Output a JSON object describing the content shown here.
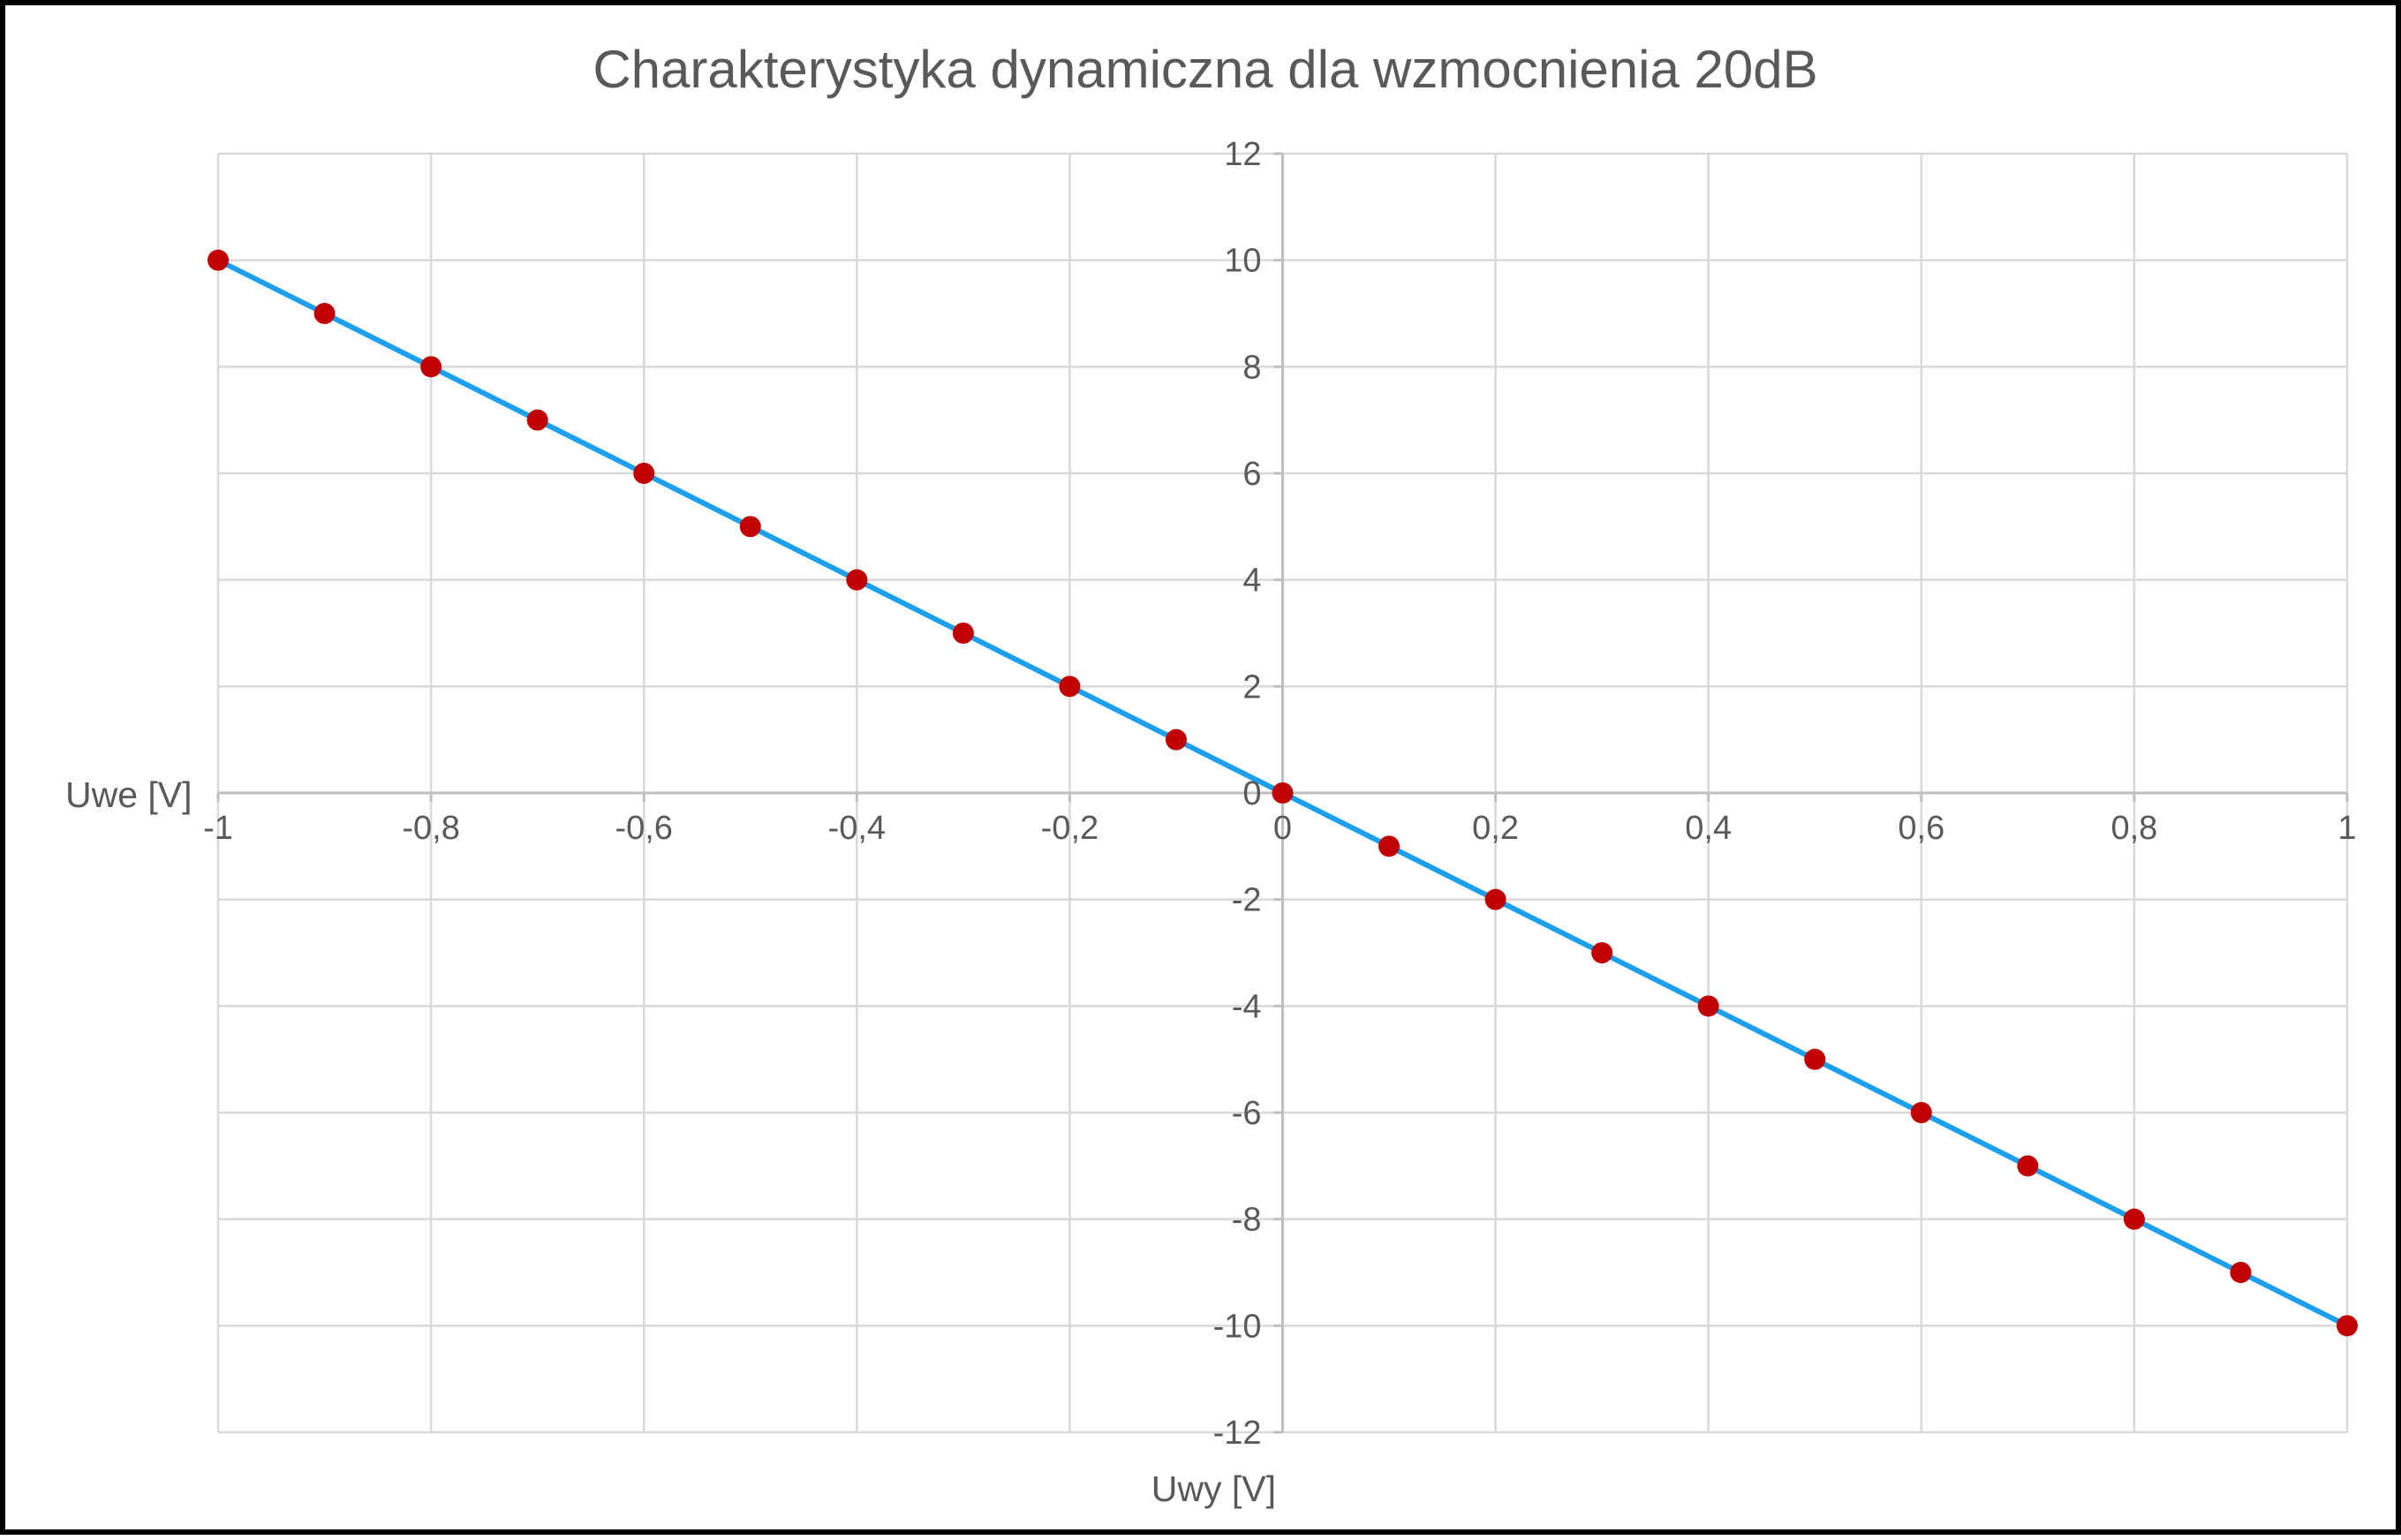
{
  "chart_data": {
    "type": "scatter",
    "title": "Charakterystyka dynamiczna dla wzmocnienia 20dB",
    "xlabel": "Uwy [V]",
    "ylabel": "Uwe [V]",
    "xlim": [
      -1,
      1
    ],
    "ylim": [
      -12,
      12
    ],
    "x_ticks": [
      -1,
      -0.8,
      -0.6,
      -0.4,
      -0.2,
      0,
      0.2,
      0.4,
      0.6,
      0.8,
      1
    ],
    "x_tick_labels": [
      "-1",
      "-0,8",
      "-0,6",
      "-0,4",
      "-0,2",
      "0",
      "0,2",
      "0,4",
      "0,6",
      "0,8",
      "1"
    ],
    "y_ticks": [
      12,
      10,
      8,
      6,
      4,
      2,
      0,
      -2,
      -4,
      -6,
      -8,
      -10,
      -12
    ],
    "y_tick_labels": [
      "12",
      "10",
      "8",
      "6",
      "4",
      "2",
      "0",
      "-2",
      "-4",
      "-6",
      "-8",
      "-10",
      "-12"
    ],
    "grid": true,
    "legend": "none",
    "series": [
      {
        "line_color": "#1ca0ee",
        "marker_color": "#c00000",
        "x": [
          -1,
          -0.9,
          -0.8,
          -0.7,
          -0.6,
          -0.5,
          -0.4,
          -0.3,
          -0.2,
          -0.1,
          0,
          0.1,
          0.2,
          0.3,
          0.4,
          0.5,
          0.6,
          0.7,
          0.8,
          0.9,
          1
        ],
        "y": [
          10,
          9,
          8,
          7,
          6,
          5,
          4,
          3,
          2,
          1,
          0,
          -1,
          -2,
          -3,
          -4,
          -5,
          -6,
          -7,
          -8,
          -9,
          -10
        ]
      }
    ]
  }
}
